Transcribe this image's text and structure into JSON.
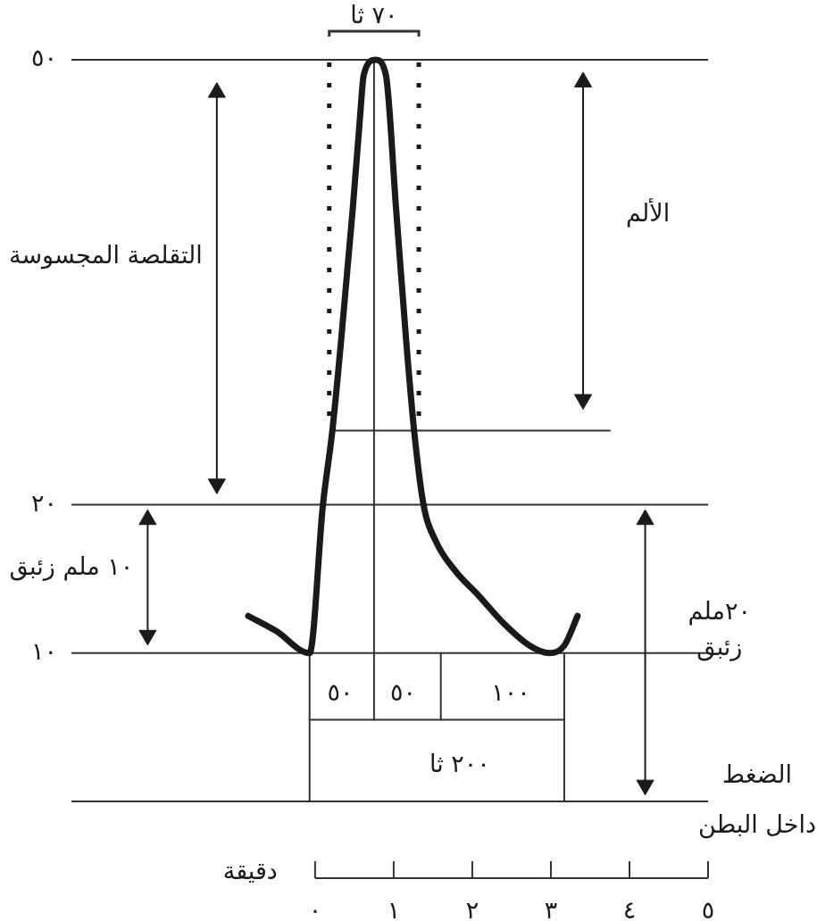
{
  "chart_data": {
    "type": "line",
    "series": [
      {
        "color": "#1a1a1a",
        "x": [
          -0.85,
          -0.5,
          -0.07,
          0.1,
          0.22,
          0.33,
          0.48,
          0.57,
          0.62,
          0.77,
          0.9,
          1.03,
          1.16,
          1.26,
          1.38,
          1.54,
          1.79,
          2.06,
          2.4,
          2.73,
          2.98,
          3.17,
          3.34
        ],
        "values": [
          12.5,
          11.5,
          10,
          20,
          25,
          31,
          40,
          46,
          49,
          50,
          49,
          40,
          31,
          25,
          20,
          17.5,
          15.5,
          14,
          12,
          10.5,
          10,
          10.5,
          12.5
        ]
      },
      {
        "color": "#333333",
        "x": [
          0.25,
          3.75
        ],
        "values": [
          25,
          25
        ]
      },
      {
        "color": "#333333",
        "x": [
          0.75,
          0.75
        ],
        "values": [
          5.5,
          50
        ]
      },
      {
        "color": "#333333",
        "x": [
          -0.07,
          -0.07
        ],
        "values": [
          0,
          10
        ]
      },
      {
        "color": "#333333",
        "x": [
          3.17,
          3.17
        ],
        "values": [
          0,
          10
        ]
      },
      {
        "color": "#333333",
        "x": [
          -0.07,
          3.17
        ],
        "values": [
          5.5,
          5.5
        ]
      },
      {
        "color": "#333333",
        "x": [
          1.6,
          1.6
        ],
        "values": [
          5.5,
          10
        ]
      },
      {
        "color": "#1a1a1a",
        "line_style": "dotted",
        "x": [
          0.18,
          0.18
        ],
        "values": [
          26,
          50
        ]
      },
      {
        "color": "#1a1a1a",
        "line_style": "dotted",
        "x": [
          1.32,
          1.32
        ],
        "values": [
          26,
          50
        ]
      },
      {
        "name": "التقلصة المجسوسة",
        "color": "#1a1a1a",
        "marker": "triangle",
        "x": [
          -1.25,
          -1.25
        ],
        "values": [
          21.4,
          47.8
        ]
      },
      {
        "name": "الألم",
        "color": "#1a1a1a",
        "marker": "triangle",
        "x": [
          3.41,
          3.41
        ],
        "values": [
          27.1,
          48.5
        ]
      },
      {
        "name": "١٠ ملم زئبق",
        "color": "#1a1a1a",
        "marker": "triangle",
        "x": [
          -2.13,
          -2.13
        ],
        "values": [
          11.2,
          19
        ]
      },
      {
        "name": "٢٠ملم زئبق",
        "color": "#1a1a1a",
        "marker": "triangle",
        "x": [
          4.2,
          4.2
        ],
        "values": [
          1.1,
          19
        ]
      }
    ],
    "xlim": [
      -3.1,
      5
    ],
    "xticks": [
      {
        "value": 0,
        "label": "٠"
      },
      {
        "value": 1,
        "label": "١"
      },
      {
        "value": 2,
        "label": "٢"
      },
      {
        "value": 3,
        "label": "٣"
      },
      {
        "value": 4,
        "label": "٤"
      },
      {
        "value": 5,
        "label": "٥"
      }
    ],
    "ylim": [
      0,
      50
    ],
    "yticks": [
      {
        "value": 10,
        "label": "١٠"
      },
      {
        "value": 20,
        "label": "٢٠"
      },
      {
        "value": 50,
        "label": "٥٠"
      }
    ],
    "xlabel": "دقيقة",
    "marker": "none",
    "ref_lines": [
      {
        "axis": "y",
        "value": 50,
        "color": "#333333"
      },
      {
        "axis": "y",
        "value": 20,
        "color": "#333333"
      },
      {
        "axis": "y",
        "value": 10,
        "color": "#333333"
      },
      {
        "axis": "y",
        "value": 0,
        "label": "الضغط داخل البطن",
        "color": "#333333"
      }
    ],
    "annotations": [
      "٧٠ ثا",
      "٥٠",
      "٥٠",
      "١٠٠",
      "٢٠٠ ثا"
    ]
  }
}
